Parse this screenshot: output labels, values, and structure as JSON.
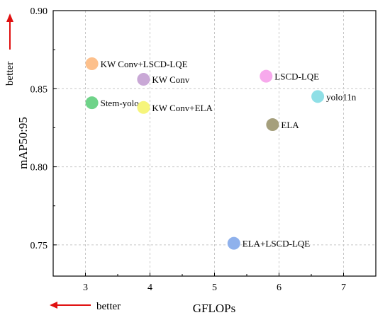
{
  "chart_data": {
    "type": "scatter",
    "title": "",
    "xlabel": "GFLOPs",
    "ylabel": "mAP50:95",
    "xlim": [
      2.5,
      7.5
    ],
    "ylim": [
      0.73,
      0.9
    ],
    "xticks": [
      3,
      4,
      5,
      6,
      7
    ],
    "yticks": [
      0.75,
      0.8,
      0.85,
      0.9
    ],
    "xtick_labels": [
      "3",
      "4",
      "5",
      "6",
      "7"
    ],
    "ytick_labels": [
      "0.75",
      "0.80",
      "0.85",
      "0.90"
    ],
    "grid": true,
    "better_x_label": "better",
    "better_y_label": "better",
    "points": [
      {
        "label": "KW Conv+LSCD-LQE",
        "x": 3.1,
        "y": 0.866,
        "color": "#fdc08c"
      },
      {
        "label": "KW Conv",
        "x": 3.9,
        "y": 0.856,
        "color": "#c9a8d6"
      },
      {
        "label": "Stem-yolo",
        "x": 3.1,
        "y": 0.841,
        "color": "#6fd389"
      },
      {
        "label": "KW Conv+ELA",
        "x": 3.9,
        "y": 0.838,
        "color": "#f6f57c"
      },
      {
        "label": "LSCD-LQE",
        "x": 5.8,
        "y": 0.858,
        "color": "#f7a9ec"
      },
      {
        "label": "yolo11n",
        "x": 6.6,
        "y": 0.845,
        "color": "#8fdfe6"
      },
      {
        "label": "ELA",
        "x": 5.9,
        "y": 0.827,
        "color": "#a59f7c"
      },
      {
        "label": "ELA+LSCD-LQE",
        "x": 5.3,
        "y": 0.751,
        "color": "#8fb1ec"
      }
    ]
  }
}
